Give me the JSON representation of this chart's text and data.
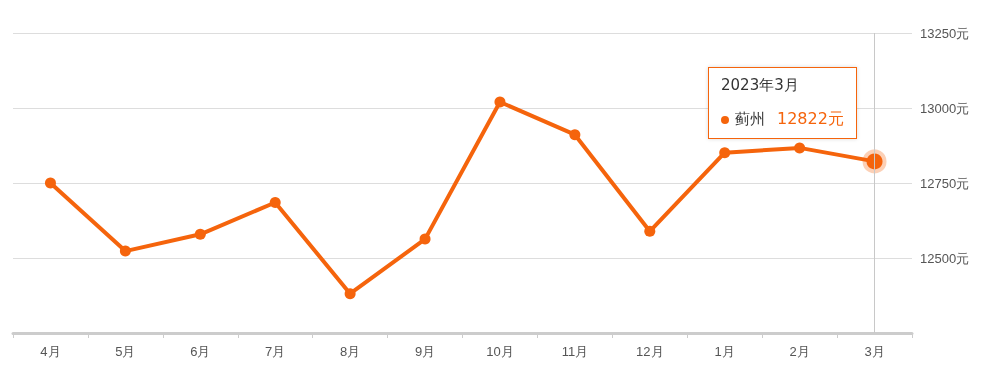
{
  "chart_data": {
    "type": "line",
    "categories": [
      "4月",
      "5月",
      "6月",
      "7月",
      "8月",
      "9月",
      "10月",
      "11月",
      "12月",
      "1月",
      "2月",
      "3月"
    ],
    "series": [
      {
        "name": "蓟州",
        "color": "#f5640c",
        "values": [
          12750,
          12523,
          12579,
          12685,
          12381,
          12563,
          13020,
          12911,
          12589,
          12851,
          12867,
          12822
        ]
      }
    ],
    "ylim": [
      12250,
      13250
    ],
    "yticks": [
      {
        "value": 12250,
        "label": null
      },
      {
        "value": 12500,
        "label": "12500元"
      },
      {
        "value": 12750,
        "label": "12750元"
      },
      {
        "value": 13000,
        "label": "13000元"
      },
      {
        "value": 13250,
        "label": "13250元"
      }
    ],
    "grid": "y",
    "legend": "top right",
    "marker": "circle",
    "line_style": "solid",
    "annotations": [
      "2023年3月",
      "12822元"
    ],
    "ref_lines": [
      {
        "axis": "x",
        "value": "3月",
        "color": "#c8c8c8"
      }
    ]
  }
}
